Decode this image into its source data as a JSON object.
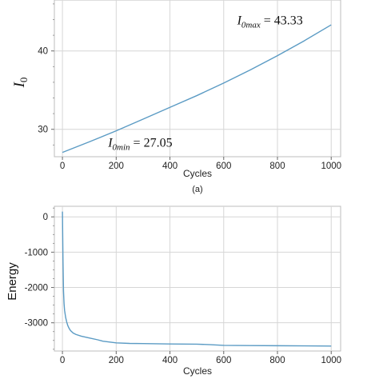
{
  "chart_data": [
    {
      "type": "line",
      "xlabel": "Cycles",
      "ylabel_main": "I",
      "ylabel_sub": "0",
      "caption": "(a)",
      "xlim": [
        -30,
        1035
      ],
      "ylim": [
        26.5,
        46.5
      ],
      "xticks": [
        0,
        200,
        400,
        600,
        800,
        1000
      ],
      "yticks": [
        30,
        40
      ],
      "grid": true,
      "line_color": "#5b9bc4",
      "series": [
        {
          "x": [
            0,
            100,
            200,
            300,
            400,
            500,
            600,
            700,
            800,
            900,
            1000
          ],
          "values": [
            27.05,
            28.4,
            29.8,
            31.3,
            32.8,
            34.3,
            35.9,
            37.6,
            39.4,
            41.3,
            43.33
          ]
        }
      ],
      "annotations": [
        {
          "main": "I",
          "sub": "0max",
          "text": " = 43.33",
          "x": 650,
          "y": 43.4
        },
        {
          "main": "I",
          "sub": "0min",
          "text": " = 27.05",
          "x": 170,
          "y": 27.8
        }
      ]
    },
    {
      "type": "line",
      "xlabel": "Cycles",
      "ylabel": "Energy",
      "xlim": [
        -30,
        1035
      ],
      "ylim": [
        -3800,
        300
      ],
      "xticks": [
        0,
        200,
        400,
        600,
        800,
        1000
      ],
      "yticks": [
        0,
        -1000,
        -2000,
        -3000
      ],
      "grid": true,
      "line_color": "#5b9bc4",
      "series": [
        {
          "x": [
            0,
            2,
            4,
            6,
            8,
            12,
            16,
            20,
            25,
            30,
            40,
            50,
            70,
            100,
            130,
            150,
            200,
            250,
            300,
            400,
            500,
            550,
            600,
            700,
            800,
            900,
            1000
          ],
          "values": [
            150,
            -1200,
            -2100,
            -2450,
            -2650,
            -2850,
            -2980,
            -3080,
            -3160,
            -3220,
            -3290,
            -3330,
            -3380,
            -3430,
            -3480,
            -3520,
            -3570,
            -3585,
            -3590,
            -3600,
            -3605,
            -3620,
            -3640,
            -3645,
            -3650,
            -3655,
            -3660
          ]
        }
      ]
    }
  ]
}
